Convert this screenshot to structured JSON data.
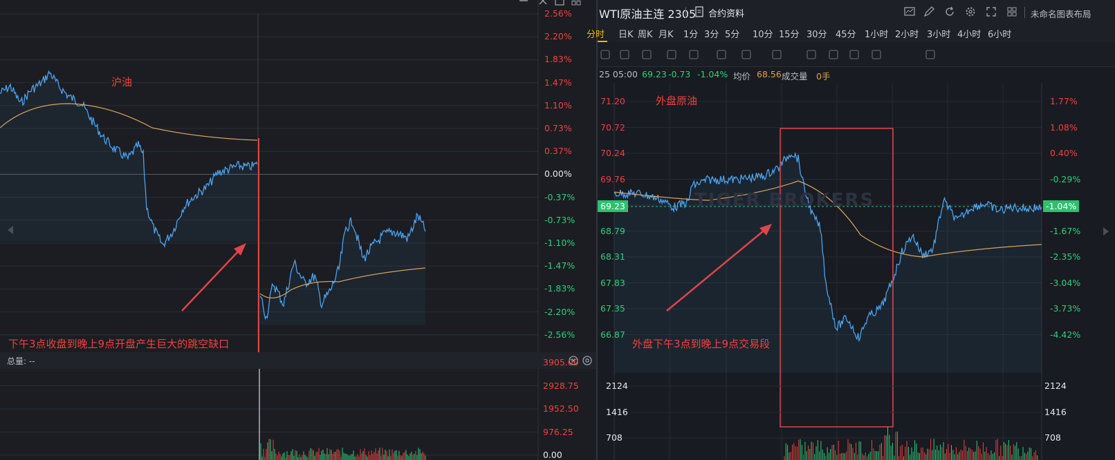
{
  "left_chart": {
    "annotation_title": "沪油",
    "gap_annotation": "下午3点收盘到晚上9点开盘产生巨大的跳空缺口",
    "pct_axis": [
      "2.56%",
      "2.20%",
      "1.83%",
      "1.47%",
      "1.10%",
      "0.73%",
      "0.37%",
      "0.00%",
      "-0.37%",
      "-0.73%",
      "-1.10%",
      "-1.47%",
      "-1.83%",
      "-2.20%",
      "-2.56%"
    ],
    "volume_label": "总量: --",
    "volume_axis": [
      "3905.00",
      "2928.75",
      "1952.50",
      "976.25",
      "0.00"
    ]
  },
  "right_chart": {
    "title": "WTI原油主连 2305",
    "contract_info": "合约资料",
    "timeframes": [
      "分时",
      "日K",
      "周K",
      "月K",
      "1分",
      "3分",
      "5分",
      "10分",
      "15分",
      "30分",
      "45分",
      "1小时",
      "2小时",
      "3小时",
      "4小时",
      "6小时"
    ],
    "layout_name": "未命名图表布局",
    "quote": {
      "time": "25 05:00",
      "price": "69.23",
      "change": "-0.73",
      "change_pct": "-1.04%",
      "avg_label": "均价",
      "avg": "68.56",
      "vol_label": "成交量",
      "vol": "0手"
    },
    "annotation_title": "外盘原油",
    "session_annotation": "外盘下午3点到晚上9点交易段",
    "watermark": "TIGER BROKERS",
    "price_axis": [
      "71.20",
      "70.72",
      "70.24",
      "69.76",
      "69.23",
      "68.79",
      "68.31",
      "67.83",
      "67.35",
      "66.87"
    ],
    "pct_axis": [
      "1.77%",
      "1.08%",
      "0.40%",
      "-0.29%",
      "-1.04%",
      "-1.67%",
      "-2.35%",
      "-3.04%",
      "-3.73%",
      "-4.42%"
    ],
    "current_price": "69.23",
    "current_pct": "-1.04%",
    "volume_axis": [
      "2124",
      "1416",
      "708"
    ]
  },
  "colors": {
    "up": "#f2413d",
    "down": "#2fd17a",
    "line": "#4aa3f0",
    "avg": "#d9a25c",
    "box": "#e0454a"
  }
}
